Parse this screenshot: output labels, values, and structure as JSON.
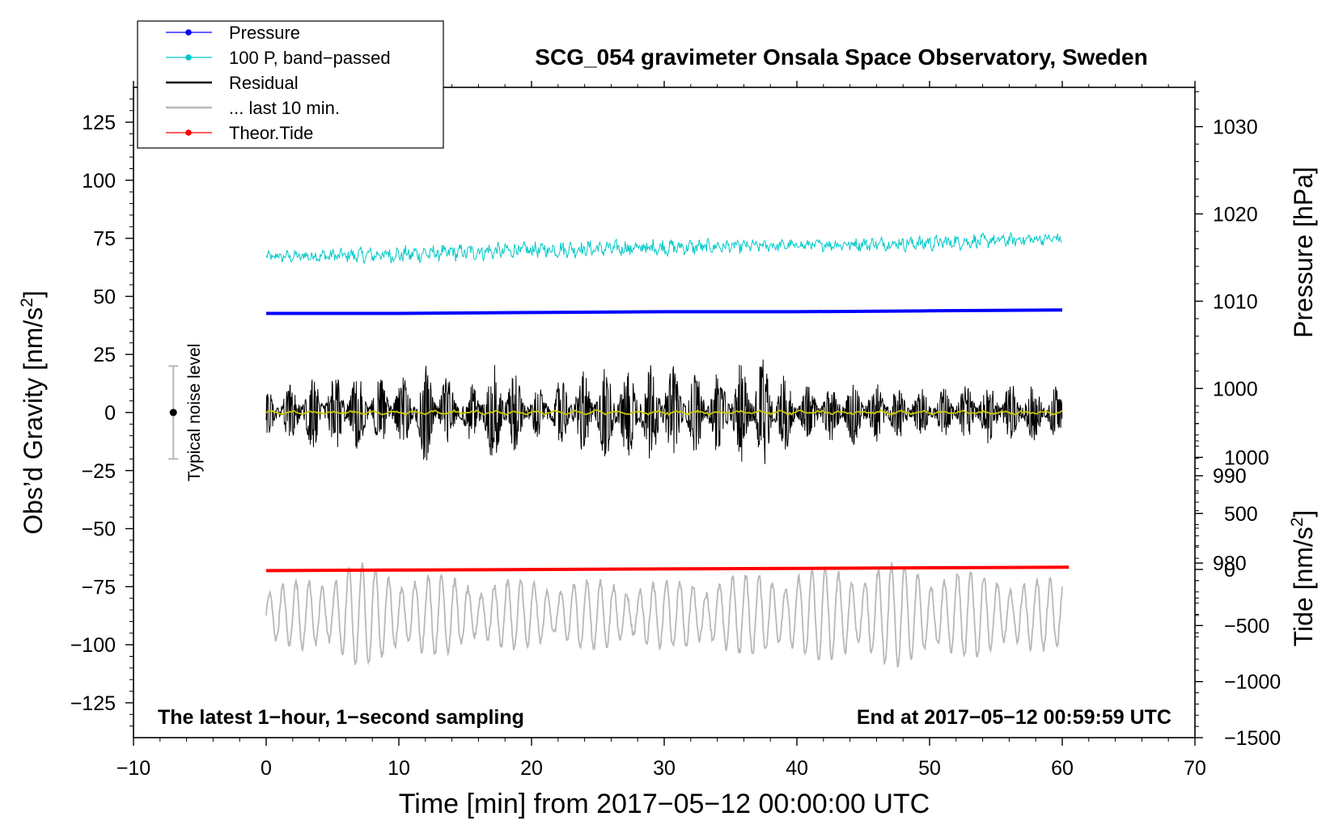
{
  "chart_data": {
    "type": "line",
    "title": "SCG_054 gravimeter Onsala Space Observatory, Sweden",
    "xlabel": "Time [min] from 2017−05−12 00:00:00 UTC",
    "ylabel_left": "Obs’d Gravity [nm/s",
    "ylabel_left_sup": "2",
    "ylabel_left_end": "]",
    "ylabel_right_top": "Pressure [hPa]",
    "ylabel_right_bottom": "Tide [nm/s",
    "ylabel_right_bottom_sup": "2",
    "ylabel_right_bottom_end": "]",
    "xlim": [
      -10,
      70
    ],
    "ylim_left": [
      -140,
      140
    ],
    "ylim_pressure": [
      960,
      1034.5
    ],
    "ylim_tide": [
      -1500,
      4300
    ],
    "x_ticks": [
      -10,
      0,
      10,
      20,
      30,
      40,
      50,
      60,
      70
    ],
    "x_tick_labels": [
      "−10",
      "0",
      "10",
      "20",
      "30",
      "40",
      "50",
      "60",
      "70"
    ],
    "y_left_ticks": [
      125,
      100,
      75,
      50,
      25,
      0,
      -25,
      -50,
      -75,
      -100,
      -125
    ],
    "y_left_tick_labels": [
      "125",
      "100",
      "75",
      "50",
      "25",
      "0",
      "−25",
      "−50",
      "−75",
      "−100",
      "−125"
    ],
    "y_pressure_ticks": [
      1030,
      1020,
      1010,
      1000,
      990,
      980
    ],
    "y_pressure_tick_labels": [
      "1030",
      "1020",
      "1010",
      "1000",
      "990",
      "980"
    ],
    "y_tide_ticks": [
      1000,
      500,
      0,
      -500,
      -1000,
      -1500
    ],
    "y_tide_tick_labels": [
      "1000",
      "500",
      "0",
      "−500",
      "−1000",
      "−1500"
    ],
    "legend": {
      "position": "top-left",
      "entries": [
        {
          "label": "Pressure",
          "color": "#0000ff",
          "marker": true
        },
        {
          "label": "100 P, band−passed",
          "color": "#00c8c8",
          "marker": true
        },
        {
          "label": "Residual",
          "color": "#000000",
          "marker": false
        },
        {
          "label": "... last 10 min.",
          "color": "#b8b8b8",
          "marker": false
        },
        {
          "label": "Theor.Tide",
          "color": "#ff0000",
          "marker": true
        }
      ]
    },
    "annotations": {
      "bottom_left": "The latest 1−hour, 1−second sampling",
      "bottom_right": "End at 2017−05−12 00:59:59 UTC",
      "noise_label": "Typical noise level"
    },
    "noise_level": {
      "x": -7,
      "center": 0,
      "upper": 20,
      "lower": -20
    },
    "series": [
      {
        "name": "Pressure",
        "axis": "pressure",
        "color": "#0000ff",
        "x": [
          0,
          10,
          20,
          30,
          40,
          50,
          60
        ],
        "values": [
          1008.6,
          1008.6,
          1008.7,
          1008.8,
          1008.8,
          1008.9,
          1009.0
        ]
      },
      {
        "name": "100 P, band−passed",
        "axis": "left",
        "color": "#00c8c8",
        "x": [
          0,
          10,
          20,
          30,
          40,
          50,
          60
        ],
        "center": [
          67,
          68,
          70,
          71,
          72,
          73,
          75
        ],
        "amplitude": [
          2,
          3,
          3,
          3,
          2,
          3,
          2
        ]
      },
      {
        "name": "Residual",
        "axis": "left",
        "color": "#000000",
        "x": [
          0,
          5,
          10,
          12,
          15,
          17.5,
          20,
          24,
          26,
          30,
          33,
          36,
          37.5,
          40,
          45,
          50,
          55,
          60
        ],
        "center": [
          0,
          0,
          0,
          0,
          0,
          0,
          0,
          0,
          0,
          0,
          0,
          0,
          0,
          0,
          0,
          0,
          0,
          0
        ],
        "envelope": [
          9,
          18,
          14,
          22,
          10,
          24,
          10,
          18,
          20,
          22,
          16,
          22,
          25,
          12,
          14,
          10,
          14,
          11
        ]
      },
      {
        "name": "Residual (smoothed)",
        "axis": "left",
        "color": "#c8c800",
        "x": [
          0,
          60
        ],
        "values": [
          0,
          0
        ]
      },
      {
        "name": "... last 10 min.",
        "axis": "left",
        "color": "#b8b8b8",
        "x": [
          0,
          6.3,
          15,
          30,
          37.5,
          47.5,
          60
        ],
        "center": [
          -87,
          -87,
          -87,
          -87,
          -87,
          -87,
          -87
        ],
        "amplitude": [
          10,
          22,
          15,
          14,
          18,
          22,
          14
        ]
      },
      {
        "name": "Theor.Tide",
        "axis": "tide",
        "color": "#ff0000",
        "x": [
          0,
          10,
          20,
          30,
          40,
          50,
          60.5
        ],
        "values": [
          -10,
          -5,
          0,
          5,
          10,
          15,
          20
        ]
      }
    ]
  }
}
